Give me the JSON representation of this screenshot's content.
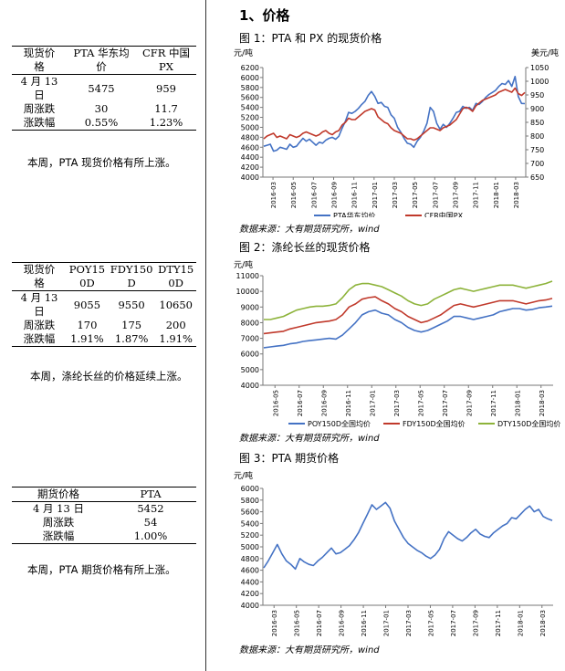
{
  "section_heading": "1、价格",
  "left": {
    "table1": {
      "headers": [
        [
          "现货价",
          "格"
        ],
        [
          "PTA 华东均",
          "价"
        ],
        [
          "CFR 中国",
          "PX"
        ]
      ],
      "rows": [
        {
          "label": [
            "4 月 13",
            "日"
          ],
          "values": [
            "5475",
            "959"
          ]
        },
        {
          "label": [
            "周涨跌"
          ],
          "values": [
            "30",
            "11.7"
          ]
        },
        {
          "label": [
            "涨跌幅"
          ],
          "values": [
            "0.55%",
            "1.23%"
          ]
        }
      ],
      "note": "本周，PTA 现货价格有所上涨。"
    },
    "table2": {
      "headers": [
        [
          "现货价",
          "格"
        ],
        [
          "POY15",
          "0D"
        ],
        [
          "FDY150",
          "D"
        ],
        [
          "DTY15",
          "0D"
        ]
      ],
      "rows": [
        {
          "label": [
            "4 月 13",
            "日"
          ],
          "values": [
            "9055",
            "9550",
            "10650"
          ]
        },
        {
          "label": [
            "周涨跌"
          ],
          "values": [
            "170",
            "175",
            "200"
          ]
        },
        {
          "label": [
            "涨跌幅"
          ],
          "values": [
            "1.91%",
            "1.87%",
            "1.91%"
          ]
        }
      ],
      "note": "本周，涤纶长丝的价格延续上涨。"
    },
    "table3": {
      "headers": [
        "期货价格",
        "PTA"
      ],
      "rows": [
        {
          "label": "4 月 13 日",
          "value": "5452"
        },
        {
          "label": "周涨跌",
          "value": "54"
        },
        {
          "label": "涨跌幅",
          "value": "1.00%"
        }
      ],
      "note": "本周，PTA 期货价格有所上涨。"
    }
  },
  "chart_data": [
    {
      "type": "line",
      "title": "图 1：PTA 和 PX 的现货价格",
      "unit_left": "元/吨",
      "unit_right": "美元/吨",
      "y_left": [
        4000,
        6200
      ],
      "y_left_step": 200,
      "y_right": [
        650,
        1050
      ],
      "y_right_step": 50,
      "x_ticks": [
        "2016-03",
        "2016-05",
        "2016-07",
        "2016-09",
        "2016-11",
        "2017-01",
        "2017-03",
        "2017-05",
        "2017-07",
        "2017-09",
        "2017-11",
        "2018-01",
        "2018-03"
      ],
      "series": [
        {
          "name": "PTA华东均价",
          "axis": "left",
          "color": "#4472c4",
          "values": [
            4620,
            4640,
            4660,
            4520,
            4540,
            4600,
            4580,
            4560,
            4660,
            4600,
            4620,
            4700,
            4780,
            4720,
            4760,
            4700,
            4640,
            4700,
            4680,
            4740,
            4780,
            4800,
            4760,
            4820,
            4980,
            5120,
            5300,
            5280,
            5320,
            5380,
            5460,
            5520,
            5640,
            5720,
            5620,
            5480,
            5500,
            5420,
            5400,
            5250,
            5180,
            5000,
            4900,
            4780,
            4680,
            4660,
            4600,
            4720,
            4800,
            4920,
            5080,
            5400,
            5320,
            5080,
            4960,
            5060,
            5000,
            5080,
            5180,
            5300,
            5320,
            5420,
            5380,
            5400,
            5340,
            5480,
            5460,
            5520,
            5600,
            5660,
            5700,
            5740,
            5820,
            5880,
            5860,
            5940,
            5820,
            6020,
            5620,
            5480,
            5475
          ]
        },
        {
          "name": "CFR中国PX",
          "axis": "right",
          "color": "#c0392b",
          "values": [
            790,
            800,
            805,
            810,
            795,
            800,
            795,
            790,
            805,
            800,
            795,
            800,
            810,
            815,
            810,
            805,
            800,
            805,
            815,
            820,
            810,
            805,
            815,
            820,
            840,
            850,
            865,
            860,
            860,
            870,
            880,
            890,
            895,
            900,
            895,
            870,
            860,
            850,
            845,
            830,
            820,
            815,
            810,
            800,
            790,
            790,
            785,
            790,
            800,
            810,
            820,
            830,
            830,
            825,
            820,
            830,
            835,
            840,
            850,
            860,
            880,
            900,
            905,
            900,
            890,
            910,
            920,
            930,
            935,
            940,
            945,
            950,
            960,
            965,
            970,
            965,
            960,
            975,
            955,
            948,
            959
          ]
        }
      ]
    },
    {
      "type": "line",
      "title": "图 2：涤纶长丝的现货价格",
      "unit_left": "元/吨",
      "y_left": [
        4000,
        11000
      ],
      "y_left_step": 1000,
      "x_ticks": [
        "2016-05",
        "2016-07",
        "2016-09",
        "2016-11",
        "2017-01",
        "2017-03",
        "2017-05",
        "2017-07",
        "2017-09",
        "2017-11",
        "2018-01",
        "2018-03"
      ],
      "series": [
        {
          "name": "POY150D全国均价",
          "color": "#4472c4",
          "values": [
            6400,
            6450,
            6500,
            6550,
            6650,
            6700,
            6800,
            6850,
            6900,
            6950,
            7000,
            6950,
            7200,
            7600,
            8000,
            8500,
            8700,
            8800,
            8600,
            8500,
            8200,
            8000,
            7700,
            7500,
            7400,
            7500,
            7700,
            7900,
            8100,
            8400,
            8400,
            8300,
            8200,
            8300,
            8400,
            8500,
            8700,
            8800,
            8900,
            8900,
            8800,
            8850,
            8950,
            9000,
            9055
          ]
        },
        {
          "name": "FDY150D全国均价",
          "color": "#c0392b",
          "values": [
            7300,
            7350,
            7400,
            7450,
            7600,
            7700,
            7800,
            7900,
            8000,
            8050,
            8100,
            8200,
            8500,
            9000,
            9200,
            9500,
            9600,
            9650,
            9400,
            9200,
            8900,
            8700,
            8400,
            8200,
            8000,
            8100,
            8300,
            8500,
            8800,
            9100,
            9200,
            9100,
            9000,
            9100,
            9200,
            9300,
            9400,
            9400,
            9400,
            9300,
            9200,
            9300,
            9400,
            9450,
            9550
          ]
        },
        {
          "name": "DTY150D全国均价",
          "color": "#8db33a",
          "values": [
            8200,
            8200,
            8300,
            8400,
            8600,
            8800,
            8900,
            9000,
            9050,
            9050,
            9100,
            9200,
            9600,
            10100,
            10400,
            10500,
            10500,
            10400,
            10300,
            10100,
            9900,
            9700,
            9400,
            9200,
            9100,
            9200,
            9500,
            9700,
            9900,
            10100,
            10200,
            10100,
            10000,
            10100,
            10200,
            10300,
            10400,
            10400,
            10400,
            10300,
            10200,
            10300,
            10400,
            10500,
            10650
          ]
        }
      ]
    },
    {
      "type": "line",
      "title": "图 3：PTA 期货价格",
      "unit_left": "元/吨",
      "y_left": [
        4000,
        6000
      ],
      "y_left_step": 200,
      "x_ticks": [
        "2016-03",
        "2016-05",
        "2016-07",
        "2016-09",
        "2016-11",
        "2017-01",
        "2017-03",
        "2017-05",
        "2017-07",
        "2017-09",
        "2017-11",
        "2018-01",
        "2018-03"
      ],
      "series": [
        {
          "name": "PTA",
          "color": "#4472c4",
          "values": [
            4640,
            4760,
            4900,
            5040,
            4880,
            4760,
            4700,
            4620,
            4800,
            4740,
            4700,
            4680,
            4760,
            4820,
            4900,
            4980,
            4880,
            4900,
            4960,
            5020,
            5120,
            5240,
            5400,
            5560,
            5720,
            5640,
            5700,
            5760,
            5660,
            5440,
            5300,
            5160,
            5060,
            5000,
            4940,
            4900,
            4840,
            4800,
            4860,
            4960,
            5140,
            5260,
            5200,
            5140,
            5100,
            5160,
            5240,
            5300,
            5220,
            5180,
            5160,
            5240,
            5300,
            5360,
            5400,
            5500,
            5480,
            5560,
            5640,
            5700,
            5600,
            5640,
            5520,
            5480,
            5452
          ]
        }
      ]
    }
  ],
  "legends": {
    "chart1": [
      "PTA华东均价",
      "CFR中国PX"
    ],
    "chart2": [
      "POY150D全国均价",
      "FDY150D全国均价",
      "DTY150D全国均价"
    ]
  },
  "source_text": "数据来源：大有期货研究所，wind"
}
